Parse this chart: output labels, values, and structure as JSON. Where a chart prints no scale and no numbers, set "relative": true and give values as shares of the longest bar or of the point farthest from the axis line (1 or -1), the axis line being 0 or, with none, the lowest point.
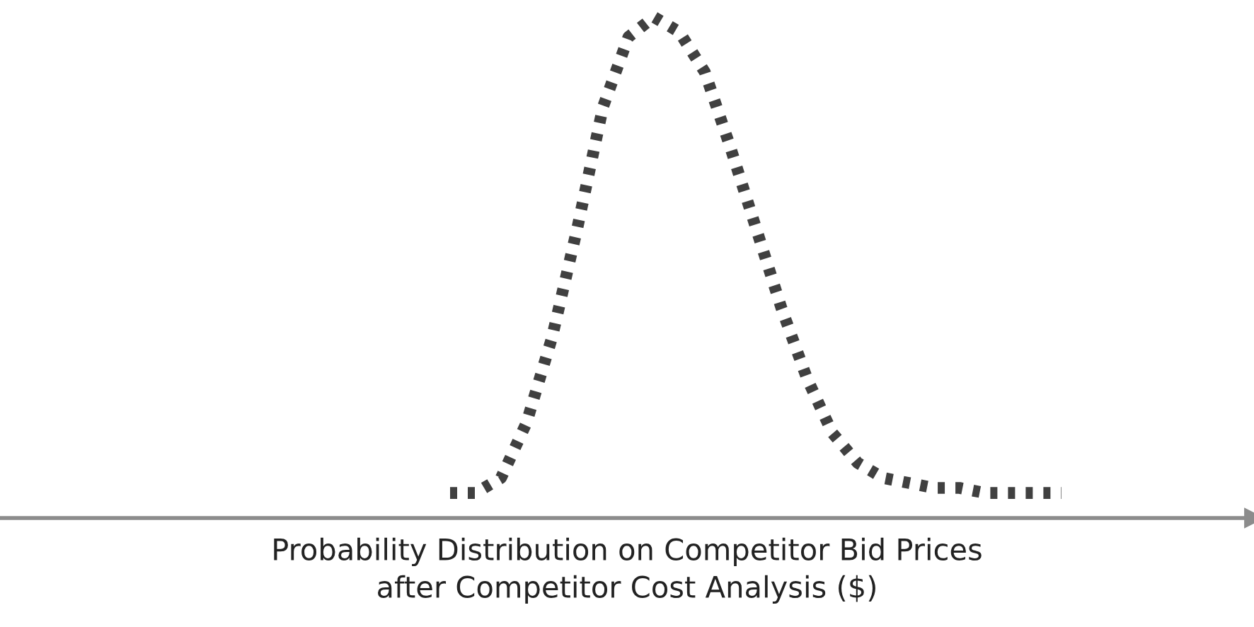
{
  "chart_data": {
    "type": "line",
    "relative": true,
    "xlabel": "Probability Distribution on Competitor Bid Prices\nafter Competitor Cost Analysis ($)",
    "tick_labels": false,
    "line_style": "dotted",
    "color": "#404040",
    "categories": [
      null,
      null,
      null,
      null,
      null,
      null,
      null,
      null,
      null,
      null,
      null,
      null,
      null,
      null,
      null,
      null,
      null,
      null,
      null,
      null,
      null,
      null,
      null,
      null,
      null
    ],
    "values": [
      0.05,
      0.05,
      0.08,
      0.19,
      0.36,
      0.58,
      0.82,
      0.96,
      1,
      0.97,
      0.89,
      0.74,
      0.58,
      0.42,
      0.28,
      0.17,
      0.11,
      0.08,
      0.07,
      0.06,
      0.06,
      0.05,
      0.05,
      0.05,
      0.05
    ]
  }
}
